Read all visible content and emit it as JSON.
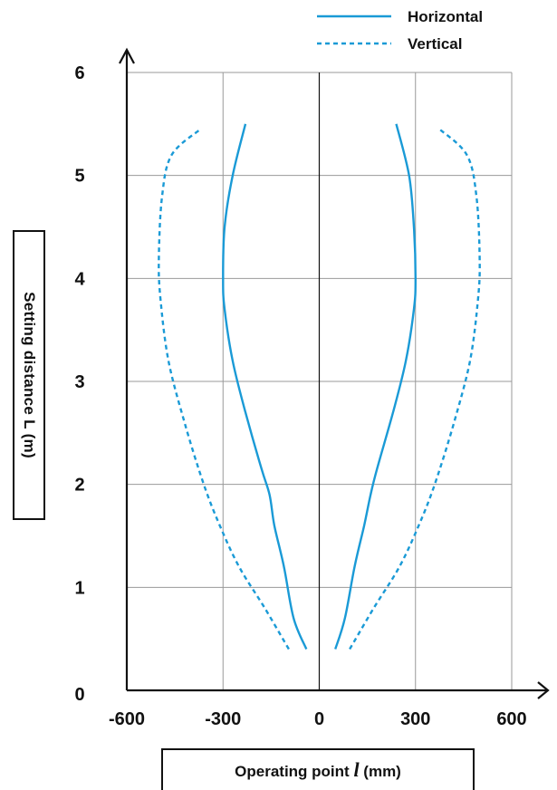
{
  "chart_data": {
    "type": "line",
    "title": "",
    "xlabel": "Operating point l (mm)",
    "ylabel": "Setting distance  L (m)",
    "xlim": [
      -600,
      600
    ],
    "ylim": [
      0,
      6
    ],
    "xticks": [
      "-600",
      "-300",
      "0",
      "300",
      "600"
    ],
    "yticks": [
      "0",
      "1",
      "2",
      "3",
      "4",
      "5",
      "6"
    ],
    "grid": true,
    "legend_position": "top-right",
    "colors": {
      "series": "#1a9ad6",
      "axis": "#111111",
      "grid": "#999999"
    },
    "series": [
      {
        "name": "Horizontal",
        "style": "solid",
        "right": [
          [
            50,
            0.4
          ],
          [
            80,
            0.7
          ],
          [
            110,
            1.2
          ],
          [
            140,
            1.6
          ],
          [
            160,
            1.9
          ],
          [
            180,
            2.15
          ],
          [
            230,
            2.7
          ],
          [
            270,
            3.2
          ],
          [
            295,
            3.7
          ],
          [
            300,
            4.0
          ],
          [
            295,
            4.5
          ],
          [
            280,
            5.0
          ],
          [
            240,
            5.5
          ]
        ],
        "left": [
          [
            -40,
            0.4
          ],
          [
            -80,
            0.7
          ],
          [
            -110,
            1.2
          ],
          [
            -140,
            1.6
          ],
          [
            -155,
            1.9
          ],
          [
            -180,
            2.15
          ],
          [
            -230,
            2.7
          ],
          [
            -270,
            3.2
          ],
          [
            -295,
            3.7
          ],
          [
            -300,
            4.0
          ],
          [
            -295,
            4.5
          ],
          [
            -270,
            5.0
          ],
          [
            -230,
            5.5
          ]
        ]
      },
      {
        "name": "Vertical",
        "style": "dashed",
        "right": [
          [
            95,
            0.4
          ],
          [
            170,
            0.8
          ],
          [
            250,
            1.2
          ],
          [
            310,
            1.6
          ],
          [
            360,
            2.0
          ],
          [
            420,
            2.6
          ],
          [
            470,
            3.2
          ],
          [
            495,
            3.8
          ],
          [
            500,
            4.2
          ],
          [
            490,
            4.8
          ],
          [
            460,
            5.2
          ],
          [
            375,
            5.45
          ]
        ],
        "left": [
          [
            -95,
            0.4
          ],
          [
            -170,
            0.8
          ],
          [
            -250,
            1.2
          ],
          [
            -310,
            1.6
          ],
          [
            -360,
            2.0
          ],
          [
            -420,
            2.6
          ],
          [
            -470,
            3.2
          ],
          [
            -495,
            3.8
          ],
          [
            -500,
            4.2
          ],
          [
            -490,
            4.8
          ],
          [
            -460,
            5.2
          ],
          [
            -370,
            5.45
          ]
        ]
      }
    ]
  },
  "legend": {
    "items": [
      {
        "label": "Horizontal",
        "style": "solid"
      },
      {
        "label": "Vertical",
        "style": "dashed"
      }
    ]
  },
  "labels": {
    "xlabel_prefix": "Operating point ",
    "xlabel_symbol": "l",
    "xlabel_unit": " (mm)",
    "ylabel": "Setting distance  L (m)"
  }
}
